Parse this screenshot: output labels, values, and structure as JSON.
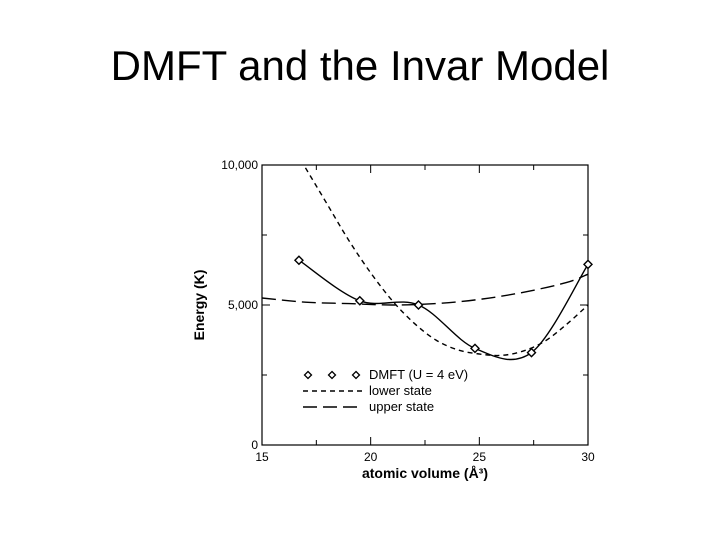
{
  "slide": {
    "title": "DMFT and the Invar Model"
  },
  "chart_data": {
    "type": "line",
    "xlabel": "atomic volume (Å³)",
    "ylabel": "Energy (K)",
    "xlim": [
      15,
      30
    ],
    "ylim": [
      0,
      10000
    ],
    "x_ticks": [
      15,
      20,
      25,
      30
    ],
    "x_tick_labels": [
      "15",
      "20",
      "25",
      "30"
    ],
    "y_ticks": [
      0,
      5000,
      10000
    ],
    "y_tick_labels": [
      "0",
      "5,000",
      "10,000"
    ],
    "grid": false,
    "legend_position": "bottom-left inside",
    "series": [
      {
        "name": "DMFT (U = 4 eV)",
        "style": "solid-with-diamonds",
        "points": [
          [
            16.7,
            6600
          ],
          [
            19.5,
            5150
          ],
          [
            22.2,
            5000
          ],
          [
            24.8,
            3450
          ],
          [
            27.4,
            3300
          ],
          [
            30.0,
            6450
          ]
        ]
      },
      {
        "name": "lower state",
        "style": "short-dash",
        "points": [
          [
            17.0,
            9900
          ],
          [
            18.0,
            8600
          ],
          [
            19.0,
            7300
          ],
          [
            20.0,
            6150
          ],
          [
            21.0,
            5150
          ],
          [
            22.0,
            4350
          ],
          [
            23.0,
            3750
          ],
          [
            24.0,
            3400
          ],
          [
            25.0,
            3250
          ],
          [
            26.0,
            3200
          ],
          [
            27.0,
            3350
          ],
          [
            28.0,
            3700
          ],
          [
            29.0,
            4300
          ],
          [
            30.0,
            5000
          ]
        ]
      },
      {
        "name": "upper state",
        "style": "long-dash",
        "points": [
          [
            15.0,
            5250
          ],
          [
            17.0,
            5100
          ],
          [
            19.0,
            5050
          ],
          [
            21.0,
            5000
          ],
          [
            23.0,
            5050
          ],
          [
            25.0,
            5200
          ],
          [
            27.0,
            5450
          ],
          [
            29.0,
            5800
          ],
          [
            30.0,
            6100
          ]
        ]
      }
    ],
    "colors": {
      "line": "#000000",
      "marker_fill": "#ffffff"
    }
  }
}
